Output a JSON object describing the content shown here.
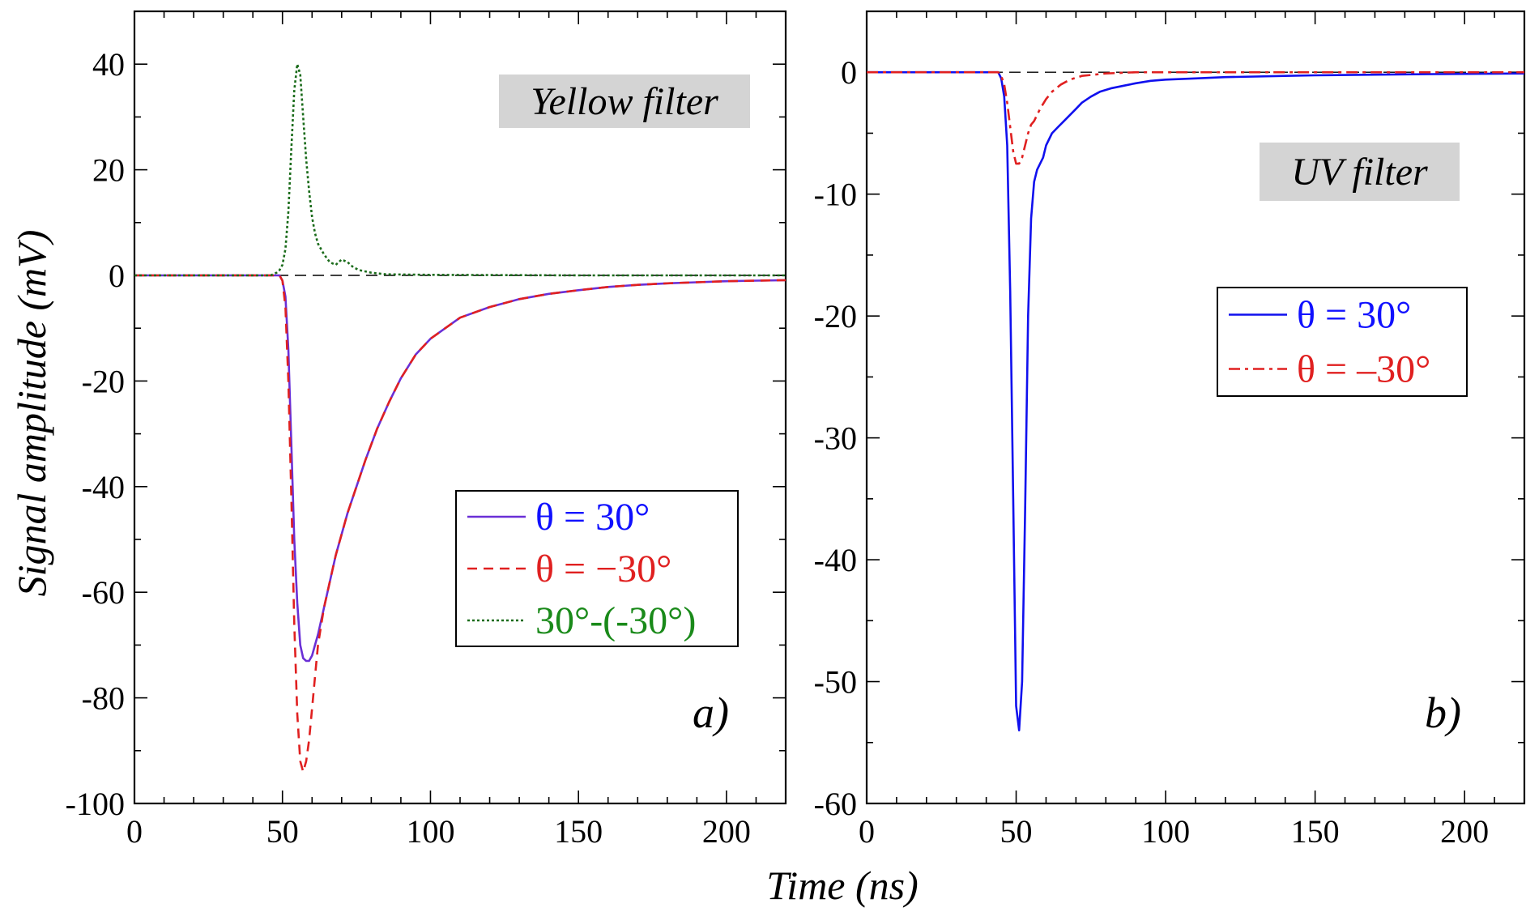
{
  "figure": {
    "xlabel": "Time (ns)",
    "ylabel": "Signal amplitude (mV)"
  },
  "chart_data": [
    {
      "type": "line",
      "panel_label": "a)",
      "filter_label": "Yellow filter",
      "xlim": [
        0,
        220
      ],
      "ylim": [
        -100,
        50
      ],
      "xticks": [
        0,
        50,
        100,
        150,
        200
      ],
      "xtick_labels": [
        "0",
        "50",
        "100",
        "150",
        "200"
      ],
      "yticks": [
        -100,
        -80,
        -60,
        -40,
        -20,
        0,
        20,
        40
      ],
      "ytick_labels": [
        "-100",
        "-80",
        "-60",
        "-40",
        "-20",
        "0",
        "20",
        "40"
      ],
      "zero_line": true,
      "legend_position": "lower-right",
      "series": [
        {
          "name": "θ = 30°",
          "color": "#6a2fd6",
          "text_color": "#1010ff",
          "style": "solid",
          "x": [
            0,
            45,
            49,
            50,
            51,
            52,
            53,
            54,
            55,
            56,
            57,
            58,
            59,
            60,
            61,
            62,
            64,
            66,
            68,
            70,
            72,
            75,
            78,
            82,
            86,
            90,
            95,
            100,
            110,
            120,
            130,
            140,
            150,
            160,
            170,
            180,
            190,
            200,
            210,
            220
          ],
          "y": [
            0,
            0,
            0,
            -1,
            -4,
            -14,
            -32,
            -50,
            -62,
            -70,
            -72.5,
            -73,
            -73,
            -72,
            -70,
            -68,
            -63,
            -58,
            -53,
            -49,
            -45,
            -40,
            -35,
            -29,
            -24,
            -19.5,
            -15,
            -12,
            -8,
            -6,
            -4.5,
            -3.5,
            -2.8,
            -2.2,
            -1.8,
            -1.5,
            -1.3,
            -1.1,
            -1.0,
            -0.9
          ]
        },
        {
          "name": "θ = −30°",
          "color": "#e02020",
          "text_color": "#e02020",
          "style": "dashed",
          "x": [
            0,
            45,
            49,
            50,
            51,
            52,
            53,
            54,
            55,
            56,
            57,
            58,
            59,
            60,
            61,
            62,
            64,
            66,
            68,
            70,
            72,
            75,
            78,
            82,
            86,
            90,
            95,
            100,
            110,
            120,
            130,
            140,
            150,
            160,
            170,
            180,
            190,
            200,
            210,
            220
          ],
          "y": [
            0,
            0,
            0,
            -1,
            -6,
            -20,
            -42,
            -66,
            -83,
            -92,
            -94,
            -92,
            -88,
            -82,
            -76,
            -70,
            -63,
            -58,
            -53,
            -49,
            -45,
            -40,
            -35,
            -29,
            -24,
            -19.5,
            -15,
            -12,
            -8,
            -6,
            -4.5,
            -3.5,
            -2.8,
            -2.2,
            -1.8,
            -1.5,
            -1.3,
            -1.1,
            -1.0,
            -0.9
          ]
        },
        {
          "name": "30°-(-30°)",
          "color": "#1a6b1a",
          "text_color": "#1a8a1a",
          "style": "dotted",
          "x": [
            0,
            46,
            48,
            49,
            50,
            51,
            52,
            53,
            54,
            55,
            56,
            57,
            58,
            59,
            60,
            61,
            62,
            64,
            66,
            68,
            70,
            72,
            74,
            76,
            80,
            85,
            100,
            150,
            220
          ],
          "y": [
            0,
            0,
            0.5,
            1,
            2,
            5,
            12,
            24,
            35,
            40,
            38,
            30,
            22,
            16,
            11,
            8,
            6,
            4,
            2.5,
            2,
            3,
            2.5,
            1.5,
            1,
            0.5,
            0.2,
            0.1,
            0,
            0
          ]
        }
      ]
    },
    {
      "type": "line",
      "panel_label": "b)",
      "filter_label": "UV filter",
      "xlim": [
        0,
        220
      ],
      "ylim": [
        -60,
        5
      ],
      "xticks": [
        0,
        50,
        100,
        150,
        200
      ],
      "xtick_labels": [
        "0",
        "50",
        "100",
        "150",
        "200"
      ],
      "yticks": [
        -60,
        -50,
        -40,
        -30,
        -20,
        -10,
        0
      ],
      "ytick_labels": [
        "-60",
        "-50",
        "-40",
        "-30",
        "-20",
        "-10",
        "0"
      ],
      "zero_line": true,
      "legend_position": "upper-right",
      "series": [
        {
          "name": "θ = 30°",
          "color": "#1010ee",
          "text_color": "#1010ff",
          "style": "solid",
          "x": [
            0,
            44,
            45,
            46,
            47,
            48,
            49,
            50,
            51,
            52,
            53,
            54,
            55,
            56,
            57,
            58,
            59,
            60,
            62,
            64,
            66,
            68,
            70,
            72,
            75,
            78,
            82,
            86,
            90,
            95,
            100,
            110,
            120,
            130,
            140,
            150,
            170,
            190,
            220
          ],
          "y": [
            0,
            0,
            -0.5,
            -2,
            -6,
            -18,
            -35,
            -52,
            -54,
            -50,
            -36,
            -20,
            -12,
            -9,
            -8,
            -7.5,
            -7,
            -6,
            -5,
            -4.5,
            -4,
            -3.5,
            -3,
            -2.5,
            -2,
            -1.6,
            -1.3,
            -1.1,
            -0.9,
            -0.7,
            -0.6,
            -0.5,
            -0.4,
            -0.35,
            -0.3,
            -0.25,
            -0.2,
            -0.15,
            -0.1
          ]
        },
        {
          "name": "θ = –30°",
          "color": "#e02020",
          "text_color": "#e02020",
          "style": "dashdot",
          "x": [
            0,
            44,
            45,
            46,
            47,
            48,
            49,
            50,
            51,
            52,
            53,
            54,
            55,
            56,
            57,
            58,
            60,
            62,
            65,
            68,
            72,
            76,
            80,
            90,
            100,
            220
          ],
          "y": [
            0,
            0,
            -0.3,
            -1,
            -2.5,
            -4.5,
            -6.5,
            -7.5,
            -7.5,
            -7,
            -6,
            -5,
            -4.3,
            -4,
            -3.5,
            -3,
            -2.2,
            -1.6,
            -1,
            -0.6,
            -0.3,
            -0.2,
            -0.1,
            0,
            0,
            0
          ]
        }
      ]
    }
  ]
}
